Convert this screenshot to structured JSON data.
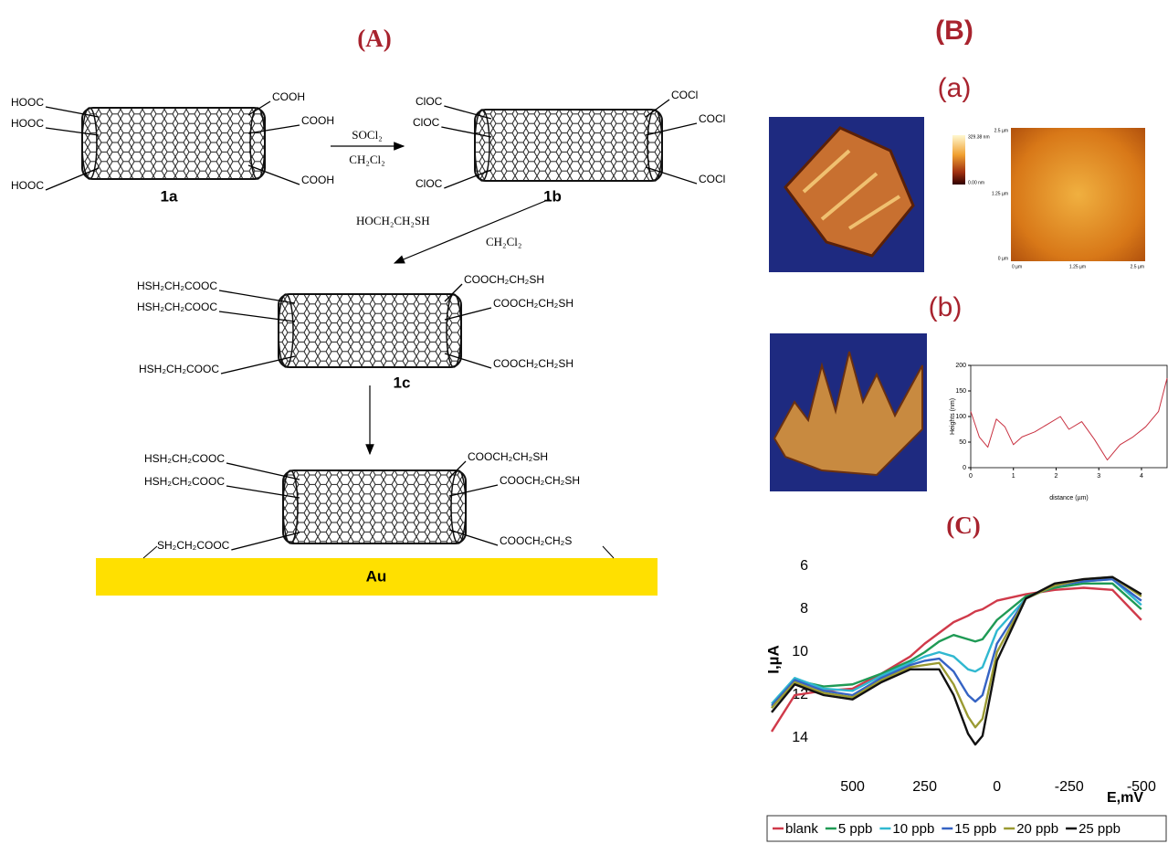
{
  "panels": {
    "A": "(A)",
    "B": "(B)",
    "a": "(a)",
    "b": "(b)",
    "C": "(C)"
  },
  "scheme": {
    "tubes": [
      {
        "label": "1a",
        "left": [
          "HOOC",
          "HOOC",
          "HOOC"
        ],
        "right": [
          "COOH",
          "COOH",
          "COOH"
        ]
      },
      {
        "label": "1b",
        "left": [
          "ClOC",
          "ClOC",
          "ClOC"
        ],
        "right": [
          "COCl",
          "COCl",
          "COCl"
        ]
      },
      {
        "label": "1c",
        "left": [
          "HSH₂CH₂COOC",
          "HSH₂CH₂COOC",
          "HSH₂CH₂COOC"
        ],
        "right": [
          "COOCH₂CH₂SH",
          "COOCH₂CH₂SH",
          "COOCH₂CH₂SH"
        ]
      },
      {
        "left": [
          "HSH₂CH₂COOC",
          "HSH₂CH₂COOC",
          "SH₂CH₂COOC"
        ],
        "right": [
          "COOCH₂CH₂SH",
          "COOCH₂CH₂SH",
          "COOCH₂CH₂S"
        ]
      }
    ],
    "step1": [
      "SOCl₂",
      "CH₂Cl₂"
    ],
    "step2": [
      "HOCH₂CH₂SH",
      "CH₂Cl₂"
    ],
    "substrate": "Au"
  },
  "afm": {
    "colorbar": [
      "329.38 nm",
      "0.00 nm"
    ],
    "y_labels": [
      "2.5 µm",
      "1.25 µm",
      "0 µm"
    ],
    "x_labels": [
      "0 µm",
      "1.25 µm",
      "2.5 µm"
    ]
  },
  "chart_data": [
    {
      "type": "line",
      "xlabel": "distance (µm)",
      "ylabel": "Heights (nm)",
      "x": [
        0,
        0.2,
        0.4,
        0.6,
        0.8,
        1.0,
        1.2,
        1.5,
        1.8,
        2.1,
        2.3,
        2.6,
        2.9,
        3.2,
        3.5,
        3.8,
        4.1,
        4.4,
        4.6
      ],
      "values": [
        110,
        60,
        40,
        95,
        80,
        45,
        60,
        70,
        85,
        100,
        75,
        90,
        55,
        15,
        45,
        60,
        80,
        110,
        175
      ],
      "color": "#c83040",
      "xlim": [
        0,
        4.6
      ],
      "xticks": [
        0,
        1,
        2,
        3,
        4
      ],
      "ylim": [
        0,
        200
      ],
      "yticks": [
        0,
        50,
        100,
        150,
        200
      ]
    },
    {
      "type": "line",
      "xlabel": "E,mV",
      "ylabel": "I,µA",
      "x": [
        780,
        700,
        600,
        500,
        400,
        300,
        250,
        200,
        150,
        100,
        75,
        50,
        0,
        -100,
        -200,
        -300,
        -400,
        -500
      ],
      "xlim": [
        780,
        -510
      ],
      "xticks": [
        500,
        250,
        0,
        -250,
        -500
      ],
      "ylim": [
        5.4,
        15.4
      ],
      "yticks": [
        6,
        8,
        10,
        12,
        14
      ],
      "y_inverted": true,
      "series": [
        {
          "name": "blank",
          "color": "#d03a4a",
          "values": [
            13.7,
            12.0,
            11.8,
            11.7,
            11.0,
            10.2,
            9.6,
            9.1,
            8.6,
            8.3,
            8.1,
            8.0,
            7.6,
            7.3,
            7.1,
            7.0,
            7.1,
            8.5
          ]
        },
        {
          "name": "5 ppb",
          "color": "#1f9a55",
          "values": [
            12.6,
            11.3,
            11.6,
            11.5,
            11.0,
            10.4,
            10.0,
            9.5,
            9.2,
            9.4,
            9.5,
            9.4,
            8.5,
            7.4,
            7.0,
            6.8,
            6.8,
            8.0
          ]
        },
        {
          "name": "10 ppb",
          "color": "#30b8d0",
          "values": [
            12.4,
            11.2,
            11.7,
            11.8,
            11.1,
            10.5,
            10.2,
            10.0,
            10.2,
            10.8,
            10.9,
            10.7,
            9.0,
            7.5,
            6.9,
            6.7,
            6.6,
            7.8
          ]
        },
        {
          "name": "15 ppb",
          "color": "#3563c4",
          "values": [
            12.5,
            11.3,
            11.8,
            12.0,
            11.2,
            10.6,
            10.4,
            10.3,
            10.9,
            12.0,
            12.3,
            12.0,
            9.6,
            7.5,
            6.9,
            6.7,
            6.6,
            7.6
          ]
        },
        {
          "name": "20 ppb",
          "color": "#9a9a32",
          "values": [
            12.6,
            11.4,
            11.9,
            12.1,
            11.3,
            10.7,
            10.6,
            10.5,
            11.5,
            13.0,
            13.5,
            13.1,
            10.0,
            7.5,
            6.9,
            6.6,
            6.5,
            7.4
          ]
        },
        {
          "name": "25 ppb",
          "color": "#111111",
          "values": [
            12.8,
            11.5,
            12.0,
            12.2,
            11.4,
            10.8,
            10.8,
            10.8,
            12.0,
            13.8,
            14.3,
            13.9,
            10.4,
            7.5,
            6.8,
            6.6,
            6.5,
            7.3
          ]
        }
      ]
    }
  ]
}
